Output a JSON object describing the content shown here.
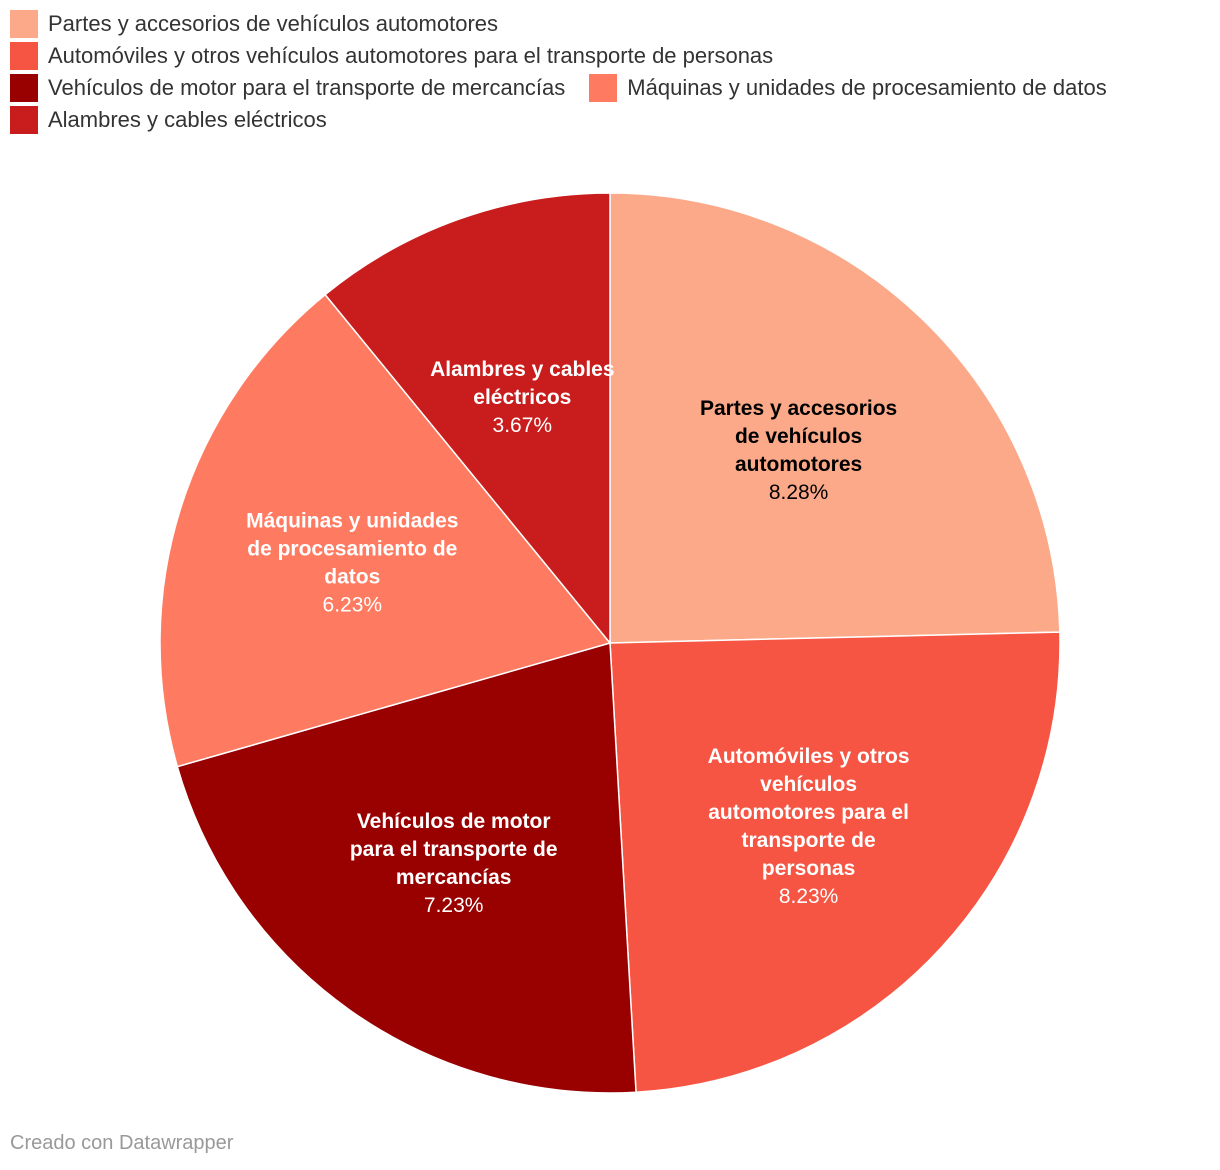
{
  "chart_data": {
    "type": "pie",
    "categories": [
      "Partes y accesorios de vehículos automotores",
      "Automóviles y otros vehículos automotores para el transporte de personas",
      "Vehículos de motor para el transporte de mercancías",
      "Máquinas y unidades de procesamiento de datos",
      "Alambres y cables eléctricos"
    ],
    "values": [
      8.28,
      8.23,
      7.23,
      6.23,
      3.67
    ],
    "value_labels": [
      "8.28%",
      "8.23%",
      "7.23%",
      "6.23%",
      "3.67%"
    ],
    "colors": [
      "#fca98a",
      "#f55542",
      "#990000",
      "#fe7b61",
      "#c91d1d"
    ],
    "label_text_colors": [
      "#000000",
      "#ffffff",
      "#ffffff",
      "#ffffff",
      "#ffffff"
    ],
    "legend_position": "top",
    "title": ""
  },
  "footer": {
    "credit": "Creado con Datawrapper"
  }
}
